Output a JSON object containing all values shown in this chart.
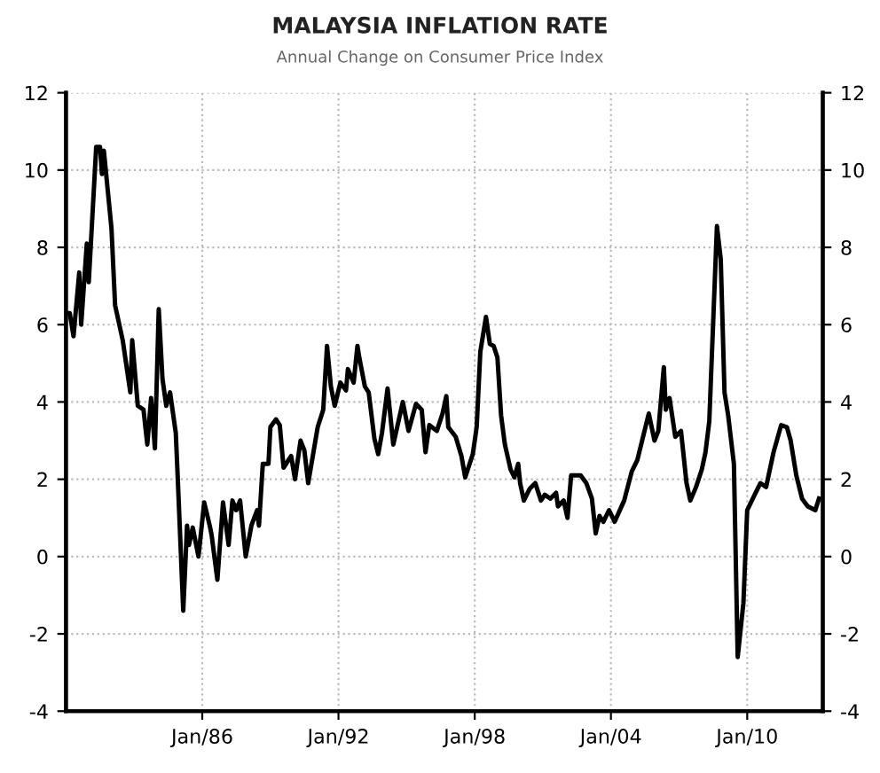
{
  "chart_data": {
    "type": "line",
    "title": "MALAYSIA INFLATION RATE",
    "subtitle": "Annual Change on Consumer Price Index",
    "x": [
      "1980-01",
      "1980-03",
      "1980-05",
      "1980-08",
      "1980-09",
      "1980-12",
      "1981-01",
      "1981-05",
      "1981-07",
      "1981-08",
      "1981-09",
      "1982-01",
      "1982-03",
      "1982-07",
      "1982-11",
      "1982-12",
      "1983-03",
      "1983-06",
      "1983-08",
      "1983-10",
      "1983-12",
      "1984-02",
      "1984-04",
      "1984-06",
      "1984-08",
      "1984-11",
      "1984-12",
      "1985-03",
      "1985-05",
      "1985-06",
      "1985-08",
      "1985-11",
      "1986-02",
      "1986-05",
      "1986-06",
      "1986-09",
      "1986-12",
      "1987-03",
      "1987-05",
      "1987-07",
      "1987-09",
      "1987-12",
      "1988-03",
      "1988-06",
      "1988-07",
      "1988-09",
      "1988-12",
      "1989-01",
      "1989-04",
      "1989-06",
      "1989-08",
      "1989-12",
      "1990-02",
      "1990-05",
      "1990-07",
      "1990-09",
      "1991-02",
      "1991-05",
      "1991-07",
      "1991-09",
      "1991-11",
      "1992-02",
      "1992-05",
      "1992-06",
      "1992-09",
      "1992-11",
      "1992-12",
      "1993-03",
      "1993-05",
      "1993-08",
      "1993-10",
      "1993-12",
      "1994-03",
      "1994-06",
      "1994-11",
      "1995-02",
      "1995-06",
      "1995-09",
      "1995-11",
      "1996-01",
      "1996-05",
      "1996-08",
      "1996-10",
      "1996-11",
      "1997-03",
      "1997-06",
      "1997-08",
      "1997-12",
      "1998-02",
      "1998-04",
      "1998-07",
      "1998-09",
      "1998-11",
      "1999-01",
      "1999-03",
      "1999-05",
      "1999-08",
      "1999-10",
      "1999-12",
      "2000-01",
      "2000-03",
      "2000-06",
      "2000-09",
      "2000-12",
      "2001-02",
      "2001-05",
      "2001-08",
      "2001-09",
      "2001-12",
      "2002-02",
      "2002-04",
      "2002-09",
      "2002-12",
      "2003-03",
      "2003-05",
      "2003-07",
      "2003-09",
      "2003-12",
      "2004-03",
      "2004-08",
      "2004-12",
      "2005-03",
      "2005-06",
      "2005-09",
      "2005-12",
      "2006-02",
      "2006-05",
      "2006-06",
      "2006-08",
      "2006-11",
      "2007-02",
      "2007-05",
      "2007-07",
      "2007-10",
      "2008-01",
      "2008-03",
      "2008-05",
      "2008-09",
      "2008-11",
      "2009-01",
      "2009-03",
      "2009-06",
      "2009-08",
      "2009-11",
      "2010-01",
      "2010-05",
      "2010-08",
      "2010-11",
      "2011-03",
      "2011-07",
      "2011-10",
      "2011-12",
      "2012-03",
      "2012-06",
      "2012-09",
      "2013-01",
      "2013-03"
    ],
    "series": [
      {
        "color": "#000000",
        "values": [
          6.3,
          6.3,
          5.7,
          7.35,
          6.0,
          8.1,
          7.1,
          10.6,
          10.6,
          9.9,
          10.5,
          8.5,
          6.5,
          5.6,
          4.25,
          5.6,
          3.9,
          3.8,
          2.9,
          4.1,
          2.8,
          6.4,
          4.6,
          3.9,
          4.25,
          3.2,
          2.1,
          -1.4,
          0.8,
          0.3,
          0.75,
          0.0,
          1.4,
          0.8,
          0.55,
          -0.6,
          1.4,
          0.3,
          1.45,
          1.2,
          1.45,
          0.0,
          0.8,
          1.2,
          0.8,
          2.4,
          2.4,
          3.35,
          3.55,
          3.4,
          2.3,
          2.6,
          2.0,
          3.0,
          2.75,
          1.9,
          3.35,
          3.8,
          5.45,
          4.4,
          3.9,
          4.5,
          4.3,
          4.85,
          4.5,
          5.45,
          5.15,
          4.4,
          4.25,
          3.05,
          2.65,
          3.2,
          4.35,
          2.9,
          4.0,
          3.25,
          3.95,
          3.8,
          2.7,
          3.4,
          3.25,
          3.7,
          4.15,
          3.35,
          3.1,
          2.6,
          2.05,
          2.65,
          3.35,
          5.3,
          6.2,
          5.5,
          5.45,
          5.15,
          3.65,
          2.9,
          2.25,
          2.05,
          2.4,
          1.9,
          1.45,
          1.75,
          1.9,
          1.45,
          1.6,
          1.5,
          1.65,
          1.3,
          1.45,
          1.0,
          2.1,
          2.1,
          1.9,
          1.5,
          0.6,
          1.05,
          0.9,
          1.2,
          0.9,
          1.45,
          2.2,
          2.5,
          3.1,
          3.7,
          3.0,
          3.25,
          4.9,
          3.8,
          4.1,
          3.1,
          3.25,
          1.9,
          1.45,
          1.8,
          2.25,
          2.7,
          3.5,
          8.55,
          7.7,
          4.25,
          3.65,
          2.4,
          -2.6,
          -1.2,
          1.2,
          1.6,
          1.9,
          1.8,
          2.7,
          3.4,
          3.35,
          3.0,
          2.1,
          1.5,
          1.3,
          1.2,
          1.5
        ]
      }
    ],
    "xlim": [
      "1980-01",
      "2013-05"
    ],
    "xticks": [
      {
        "value": "1986-01",
        "label": "Jan/86"
      },
      {
        "value": "1992-01",
        "label": "Jan/92"
      },
      {
        "value": "1998-01",
        "label": "Jan/98"
      },
      {
        "value": "2004-01",
        "label": "Jan/04"
      },
      {
        "value": "2010-01",
        "label": "Jan/10"
      }
    ],
    "ylim": [
      -4,
      12
    ],
    "yticks": [
      -4,
      -2,
      0,
      2,
      4,
      6,
      8,
      10,
      12
    ],
    "y2lim": [
      -4,
      12
    ],
    "y2ticks": [
      -4,
      -2,
      0,
      2,
      4,
      6,
      8,
      10,
      12
    ],
    "grid": true,
    "line_style": "solid",
    "marker": "none"
  }
}
